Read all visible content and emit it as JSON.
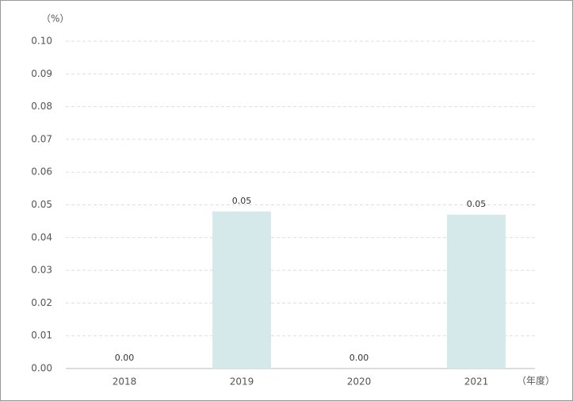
{
  "chart_data": {
    "type": "bar",
    "y_unit": "（%）",
    "x_unit": "（年度）",
    "categories": [
      "2018",
      "2019",
      "2020",
      "2021"
    ],
    "values": [
      0,
      0.048,
      0,
      0.047
    ],
    "value_labels": [
      "0.00",
      "0.05",
      "0.00",
      "0.05"
    ],
    "color": "#d5e8ea",
    "ylim": [
      0,
      0.1
    ],
    "yticks": [
      {
        "value": 0,
        "label": "0.00"
      },
      {
        "value": 0.01,
        "label": "0.01"
      },
      {
        "value": 0.02,
        "label": "0.02"
      },
      {
        "value": 0.03,
        "label": "0.03"
      },
      {
        "value": 0.04,
        "label": "0.04"
      },
      {
        "value": 0.05,
        "label": "0.05"
      },
      {
        "value": 0.06,
        "label": "0.06"
      },
      {
        "value": 0.07,
        "label": "0.07"
      },
      {
        "value": 0.08,
        "label": "0.08"
      },
      {
        "value": 0.09,
        "label": "0.09"
      },
      {
        "value": 0.1,
        "label": "0.10"
      }
    ],
    "grid": true
  }
}
